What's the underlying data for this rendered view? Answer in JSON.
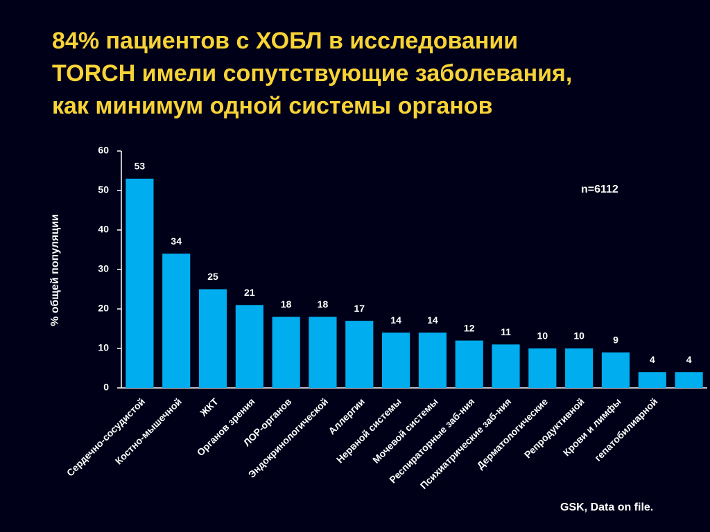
{
  "chart_data": {
    "type": "bar",
    "title_lines": [
      "84% пациентов с ХОБЛ в исследовании",
      "TORCH имели сопутствующие заболевания,",
      "как минимум одной системы органов"
    ],
    "y_label": "% общей популяции",
    "annotations": [
      "n=6112",
      "GSK, Data on file."
    ],
    "categories": [
      "Сердечно-сосудистой",
      "Костно-мышечной",
      "ЖКТ",
      "Органов зрения",
      "ЛОР-органов",
      "Эндокринологической",
      "Аллергии",
      "Нервной системы",
      "Мочевой системы",
      "Респираторные заб-ния",
      "Психиатрические заб-ния",
      "Дерматологические",
      "Репродуктивной",
      "Крови и лимфы",
      "гепатобилиарной",
      null
    ],
    "values": [
      53,
      34,
      25,
      21,
      18,
      18,
      17,
      14,
      14,
      12,
      11,
      10,
      10,
      9,
      4,
      4
    ],
    "color": "#00aeef",
    "ylim": [
      0,
      60
    ],
    "yticks": [
      0,
      10,
      20,
      30,
      40,
      50,
      60
    ],
    "grid": false
  }
}
